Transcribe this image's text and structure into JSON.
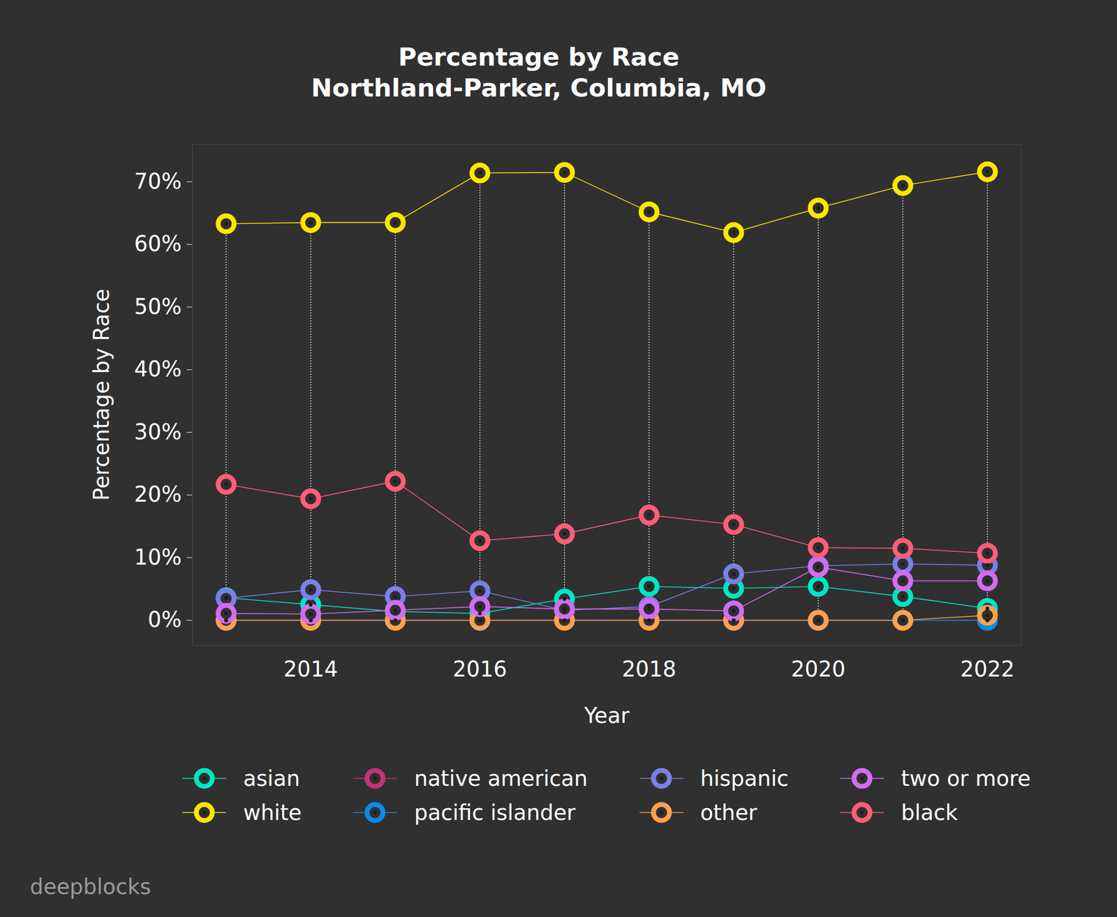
{
  "chart_data": {
    "type": "line",
    "title": "Percentage by Race",
    "subtitle": "Northland-Parker, Columbia, MO",
    "x_label": "Year",
    "y_label": "Percentage by Race",
    "caption": "deepblocks",
    "x": [
      2013,
      2014,
      2015,
      2016,
      2017,
      2018,
      2019,
      2020,
      2021,
      2022
    ],
    "xlim": [
      2012.6,
      2022.4
    ],
    "xticks": [
      2014,
      2016,
      2018,
      2020,
      2022
    ],
    "ylim": [
      -4,
      76
    ],
    "yticks": [
      {
        "value": 0,
        "label": "0%"
      },
      {
        "value": 10,
        "label": "10%"
      },
      {
        "value": 20,
        "label": "20%"
      },
      {
        "value": 30,
        "label": "30%"
      },
      {
        "value": 40,
        "label": "40%"
      },
      {
        "value": 50,
        "label": "50%"
      },
      {
        "value": 60,
        "label": "60%"
      },
      {
        "value": 70,
        "label": "70%"
      }
    ],
    "marker": "circle",
    "legend": "bottom",
    "grid": false,
    "series": [
      {
        "name": "asian",
        "color": "#00e6c3",
        "values": [
          3.6,
          2.5,
          1.4,
          1.1,
          3.4,
          5.4,
          5.1,
          5.4,
          3.8,
          1.9
        ]
      },
      {
        "name": "white",
        "color": "#ffe600",
        "values": [
          63.3,
          63.5,
          63.5,
          71.4,
          71.5,
          65.2,
          61.9,
          65.8,
          69.4,
          71.6
        ]
      },
      {
        "name": "native american",
        "color": "#c2347a",
        "values": [
          0,
          0,
          0,
          0,
          0,
          0,
          0,
          0,
          0,
          0
        ]
      },
      {
        "name": "pacific islander",
        "color": "#0a8ce6",
        "values": [
          0,
          0,
          0,
          0,
          0,
          0,
          0,
          0,
          0,
          0
        ]
      },
      {
        "name": "hispanic",
        "color": "#7b7fe8",
        "values": [
          3.5,
          4.9,
          3.8,
          4.7,
          1.6,
          2.2,
          7.4,
          8.7,
          9.0,
          8.8
        ]
      },
      {
        "name": "other",
        "color": "#ffa04d",
        "values": [
          0,
          0,
          0,
          0,
          0,
          0,
          0,
          0,
          0,
          0.8
        ]
      },
      {
        "name": "two or more",
        "color": "#d26cf0",
        "values": [
          1.1,
          1.0,
          1.6,
          2.2,
          1.8,
          1.8,
          1.5,
          8.5,
          6.3,
          6.3
        ]
      },
      {
        "name": "black",
        "color": "#ff5c78",
        "values": [
          21.7,
          19.4,
          22.2,
          12.7,
          13.8,
          16.8,
          15.3,
          11.6,
          11.5,
          10.7
        ]
      }
    ]
  }
}
